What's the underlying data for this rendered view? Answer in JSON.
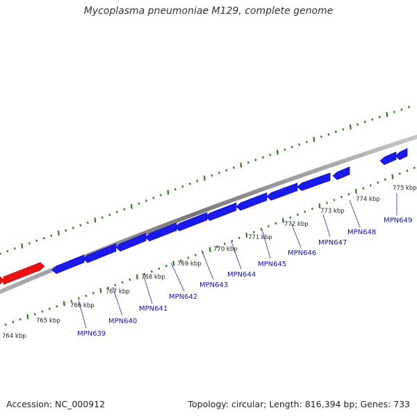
{
  "title": "Mycoplasma pneumoniae M129, complete genome",
  "footer": {
    "accession": "Accession: NC_000912",
    "stats": "Topology: circular; Length: 816,394 bp; Genes: 733"
  },
  "colors": {
    "background": "#ffffff",
    "backbone": "#8a8a8a",
    "tick": "#2e7d1f",
    "forward_gene": "#ee1111",
    "reverse_gene": "#1a1aee",
    "gene_label": "#1111bb",
    "kbp_label": "#222222"
  },
  "kbp_labels": [
    "764 kbp",
    "765 kbp",
    "766 kbp",
    "767 kbp",
    "768 kbp",
    "769 kbp",
    "770 kbp",
    "771 kbp",
    "772 kbp",
    "773 kbp",
    "774 kbp",
    "775 kbp"
  ],
  "gene_labels": [
    "MPN639",
    "MPN640",
    "MPN641",
    "MPN642",
    "MPN643",
    "MPN644",
    "MPN645",
    "MPN646",
    "MPN647",
    "MPN648",
    "MPN649"
  ]
}
